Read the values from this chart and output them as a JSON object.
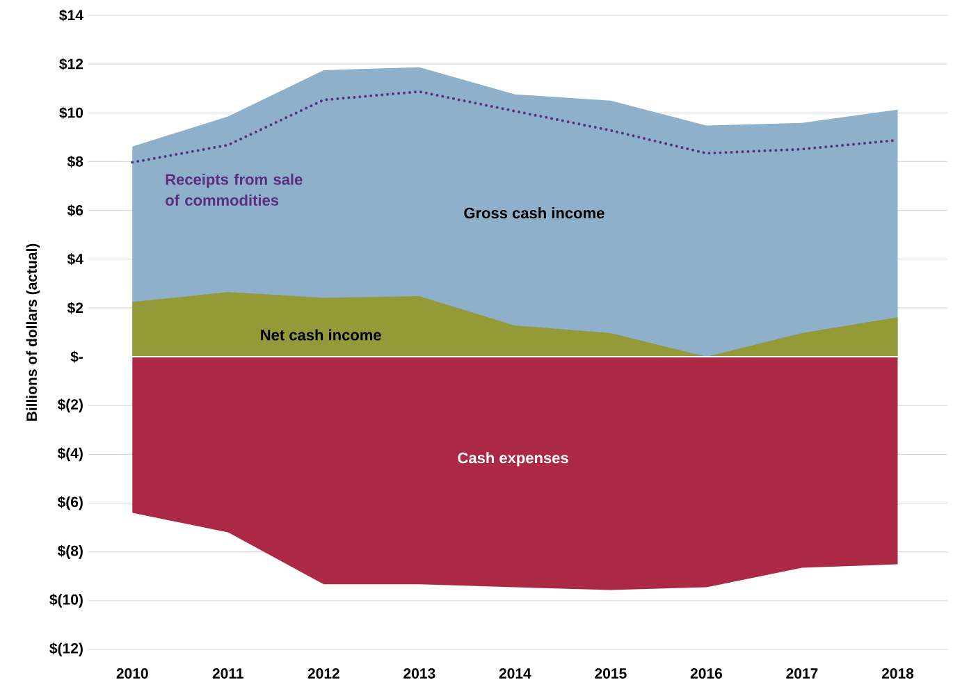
{
  "chart_data": {
    "type": "area",
    "ylabel": "Billions of dollars (actual)",
    "categories": [
      "2010",
      "2011",
      "2012",
      "2013",
      "2014",
      "2015",
      "2016",
      "2017",
      "2018"
    ],
    "series": [
      {
        "name": "Gross cash income",
        "color": "#8eb0ca",
        "values": [
          8.62,
          9.85,
          11.75,
          11.87,
          10.76,
          10.5,
          9.48,
          9.59,
          10.13
        ]
      },
      {
        "name": "Net cash income",
        "color": "#949a37",
        "values": [
          2.25,
          2.65,
          2.42,
          2.48,
          1.28,
          0.97,
          0,
          0.97,
          1.62
        ]
      },
      {
        "name": "Cash expenses",
        "color": "#ac2945",
        "values": [
          -6.4,
          -7.2,
          -9.33,
          -9.33,
          -9.45,
          -9.56,
          -9.45,
          -8.65,
          -8.51
        ]
      },
      {
        "name": "Receipts from sale of commodities",
        "type": "line",
        "line_style": "dotted",
        "color": "#5b2e7f",
        "values": [
          7.97,
          8.68,
          10.53,
          10.87,
          10.07,
          9.28,
          8.34,
          8.51,
          8.88
        ]
      }
    ],
    "ylim": [
      -12,
      14
    ],
    "yticks": [
      {
        "value": -12,
        "label": "$(12)"
      },
      {
        "value": -10,
        "label": "$(10)"
      },
      {
        "value": -8,
        "label": "$(8)"
      },
      {
        "value": -6,
        "label": "$(6)"
      },
      {
        "value": -4,
        "label": "$(4)"
      },
      {
        "value": -2,
        "label": "$(2)"
      },
      {
        "value": 0,
        "label": "$-"
      },
      {
        "value": 2,
        "label": "$2"
      },
      {
        "value": 4,
        "label": "$4"
      },
      {
        "value": 6,
        "label": "$6"
      },
      {
        "value": 8,
        "label": "$8"
      },
      {
        "value": 10,
        "label": "$10"
      },
      {
        "value": 12,
        "label": "$12"
      },
      {
        "value": 14,
        "label": "$14"
      }
    ],
    "grid": "y"
  }
}
